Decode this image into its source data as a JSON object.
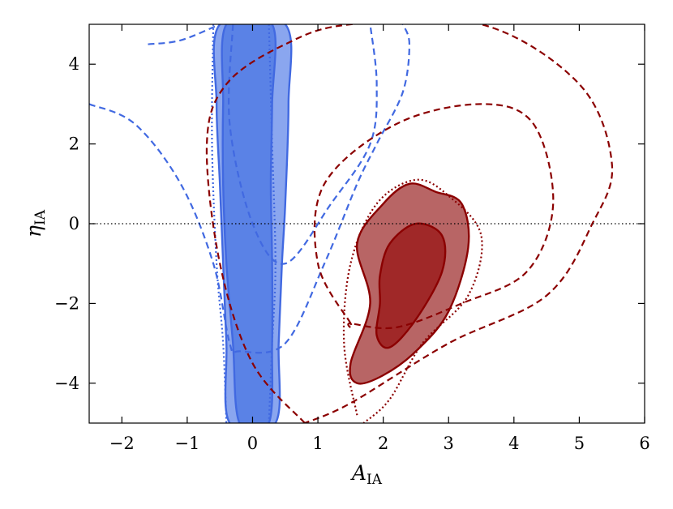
{
  "chart_data": {
    "type": "contour",
    "xlabel": "A",
    "xlabel_sub": "IA",
    "ylabel": "η",
    "ylabel_sub": "IA",
    "xlim": [
      -2.5,
      6
    ],
    "ylim": [
      -5,
      5
    ],
    "xticks": [
      -2,
      -1,
      0,
      1,
      2,
      3,
      4,
      5,
      6
    ],
    "yticks": [
      -4,
      -2,
      0,
      2,
      4
    ],
    "xtick_labels": [
      "−2",
      "−1",
      "0",
      "1",
      "2",
      "3",
      "4",
      "5",
      "6"
    ],
    "ytick_labels": [
      "−4",
      "−2",
      "0",
      "2",
      "4"
    ],
    "reference_line": {
      "y": 0,
      "style": "dotted",
      "color": "#000000"
    },
    "grid": false,
    "series": [
      {
        "color": "#4169e1",
        "style": "filled",
        "contours": [
          {
            "level": "outer",
            "fill": "#8aa6ef",
            "points": [
              [
                -0.5,
                5
              ],
              [
                -0.55,
                3
              ],
              [
                -0.5,
                1
              ],
              [
                -0.45,
                -1
              ],
              [
                -0.4,
                -3
              ],
              [
                -0.35,
                -5
              ],
              [
                0.35,
                -5
              ],
              [
                0.4,
                -3
              ],
              [
                0.45,
                -1
              ],
              [
                0.5,
                0.5
              ],
              [
                0.55,
                3
              ],
              [
                0.5,
                5
              ]
            ]
          },
          {
            "level": "inner",
            "fill": "#5a82e6",
            "points": [
              [
                -0.4,
                5
              ],
              [
                -0.45,
                3
              ],
              [
                -0.45,
                1
              ],
              [
                -0.4,
                -1
              ],
              [
                -0.3,
                -3
              ],
              [
                -0.2,
                -5
              ],
              [
                0.25,
                -5
              ],
              [
                0.3,
                -3
              ],
              [
                0.3,
                -1
              ],
              [
                0.28,
                1
              ],
              [
                0.3,
                3
              ],
              [
                0.3,
                5
              ]
            ]
          }
        ]
      },
      {
        "color": "#4169e1",
        "style": "dotted",
        "contours": [
          {
            "level": "outer",
            "points": [
              [
                -0.6,
                5
              ],
              [
                -0.62,
                2
              ],
              [
                -0.55,
                -1
              ],
              [
                -0.45,
                -3
              ],
              [
                -0.4,
                -5
              ]
            ]
          },
          {
            "level": "outer",
            "points": [
              [
                0.25,
                5
              ],
              [
                0.3,
                2
              ],
              [
                0.35,
                -1
              ],
              [
                0.3,
                -3
              ],
              [
                0.25,
                -5
              ]
            ]
          }
        ]
      },
      {
        "color": "#4169e1",
        "style": "dashed",
        "contours": [
          {
            "level": "outer",
            "points": [
              [
                -2.5,
                3
              ],
              [
                -1.8,
                2.5
              ],
              [
                -1.1,
                1
              ],
              [
                -0.6,
                -1
              ],
              [
                -0.35,
                -3
              ],
              [
                -0.2,
                -3.2
              ],
              [
                0.5,
                -3
              ],
              [
                1.1,
                -1
              ],
              [
                1.6,
                1
              ],
              [
                1.9,
                2
              ],
              [
                2.3,
                3.3
              ],
              [
                2.4,
                4.5
              ],
              [
                2.3,
                5
              ]
            ]
          },
          {
            "level": "outer",
            "points": [
              [
                -1.6,
                4.5
              ],
              [
                -1.1,
                4.6
              ],
              [
                -0.5,
                5
              ]
            ]
          },
          {
            "level": "inner",
            "points": [
              [
                -0.3,
                5
              ],
              [
                -0.35,
                2.5
              ],
              [
                0.0,
                0
              ],
              [
                0.5,
                -1
              ],
              [
                1.2,
                0.5
              ],
              [
                1.8,
                2
              ],
              [
                1.9,
                3.5
              ],
              [
                1.8,
                5
              ]
            ]
          }
        ]
      },
      {
        "color": "#8b0000",
        "style": "filled",
        "contours": [
          {
            "level": "outer",
            "fill": "#b86565",
            "points": [
              [
                1.8,
                -2
              ],
              [
                1.5,
                -3.5
              ],
              [
                1.6,
                -4
              ],
              [
                2.0,
                -3.8
              ],
              [
                2.5,
                -3.2
              ],
              [
                3.0,
                -2.2
              ],
              [
                3.3,
                -0.6
              ],
              [
                3.2,
                0.5
              ],
              [
                2.8,
                0.8
              ],
              [
                2.4,
                1.0
              ],
              [
                2.0,
                0.5
              ],
              [
                1.6,
                -0.5
              ]
            ]
          },
          {
            "level": "inner",
            "fill": "#a02828",
            "points": [
              [
                1.95,
                -2
              ],
              [
                1.9,
                -2.8
              ],
              [
                2.1,
                -3.1
              ],
              [
                2.5,
                -2.4
              ],
              [
                2.9,
                -1.2
              ],
              [
                2.9,
                -0.3
              ],
              [
                2.5,
                0.0
              ],
              [
                2.1,
                -0.5
              ],
              [
                1.95,
                -1.3
              ]
            ]
          }
        ]
      },
      {
        "color": "#8b0000",
        "style": "dotted",
        "contours": [
          {
            "level": "outer",
            "points": [
              [
                1.6,
                -4.8
              ],
              [
                1.4,
                -3
              ],
              [
                1.5,
                -1
              ],
              [
                1.9,
                0.5
              ],
              [
                2.5,
                1.1
              ],
              [
                3.0,
                0.7
              ],
              [
                3.5,
                -0.3
              ],
              [
                3.3,
                -1.8
              ],
              [
                2.6,
                -3.0
              ],
              [
                2.1,
                -4.4
              ],
              [
                1.7,
                -5
              ]
            ]
          }
        ]
      },
      {
        "color": "#8b0000",
        "style": "dashed",
        "contours": [
          {
            "level": "outer",
            "points": [
              [
                0.8,
                -5
              ],
              [
                0.0,
                -3.5
              ],
              [
                -0.5,
                -1
              ],
              [
                -0.7,
                2
              ],
              [
                -0.4,
                3.5
              ],
              [
                0.5,
                4.5
              ],
              [
                1.5,
                5
              ],
              [
                3.5,
                5
              ],
              [
                5.0,
                3.5
              ],
              [
                5.5,
                1.5
              ],
              [
                5.2,
                0
              ],
              [
                4.5,
                -1.8
              ],
              [
                3.0,
                -3
              ],
              [
                1.5,
                -4.5
              ],
              [
                0.8,
                -5
              ]
            ]
          },
          {
            "level": "inner",
            "points": [
              [
                1.5,
                -2.5
              ],
              [
                1.0,
                -1
              ],
              [
                1.1,
                1
              ],
              [
                2.2,
                2.5
              ],
              [
                3.5,
                3
              ],
              [
                4.3,
                2.5
              ],
              [
                4.6,
                0.5
              ],
              [
                4.2,
                -1.2
              ],
              [
                3.2,
                -2
              ],
              [
                2.2,
                -2.6
              ],
              [
                1.5,
                -2.5
              ]
            ]
          }
        ]
      }
    ]
  }
}
